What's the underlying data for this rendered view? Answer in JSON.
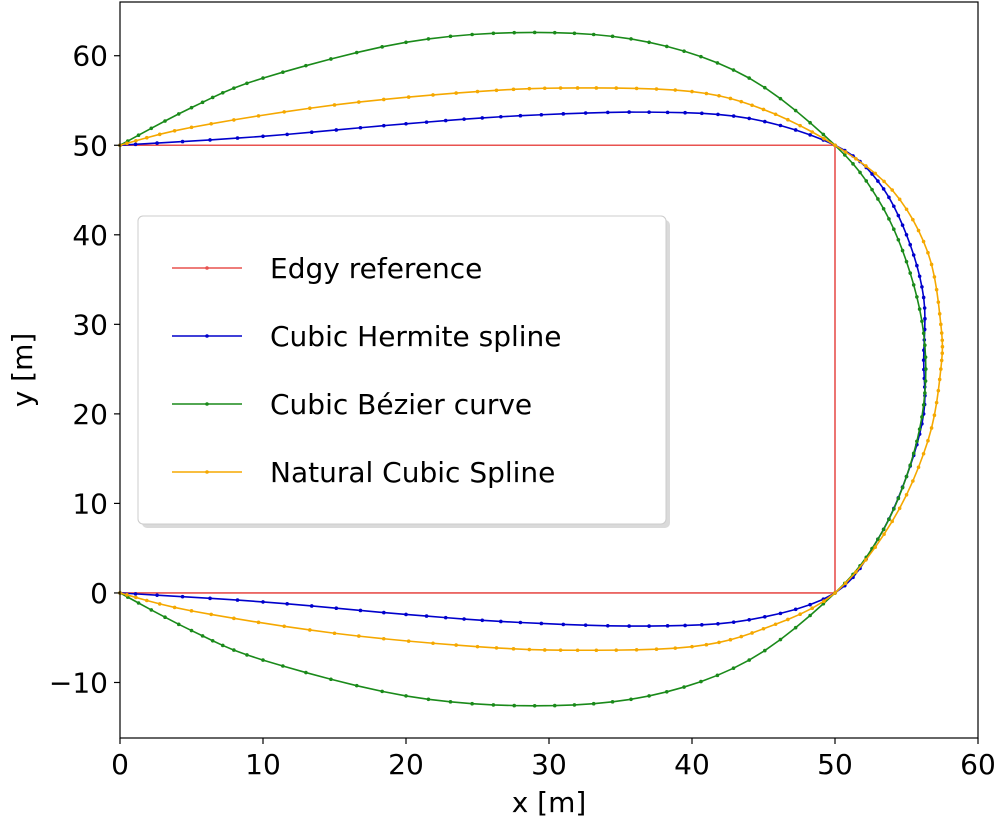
{
  "chart_data": {
    "type": "line",
    "xlabel": "x [m]",
    "ylabel": "y [m]",
    "xlim": [
      0,
      60
    ],
    "ylim": [
      -16.2,
      66
    ],
    "xticks": [
      0,
      10,
      20,
      30,
      40,
      50,
      60
    ],
    "yticks": [
      -10,
      0,
      10,
      20,
      30,
      40,
      50,
      60
    ],
    "xtick_labels": [
      "0",
      "10",
      "20",
      "30",
      "40",
      "50",
      "60"
    ],
    "ytick_labels": [
      "−10",
      "0",
      "10",
      "20",
      "30",
      "40",
      "50",
      "60"
    ],
    "grid": false,
    "legend_position": "center-left",
    "series": [
      {
        "name": "Edgy reference",
        "color": "#e8524f",
        "markers": false,
        "points": [
          [
            0,
            50
          ],
          [
            50,
            50
          ],
          [
            50,
            0
          ],
          [
            0,
            0
          ]
        ]
      },
      {
        "name": "Cubic Hermite spline",
        "color": "#0000cc",
        "markers": true,
        "points": [
          [
            0,
            50
          ],
          [
            10,
            51
          ],
          [
            20,
            52.4
          ],
          [
            28,
            53.3
          ],
          [
            37,
            53.7
          ],
          [
            44,
            53
          ],
          [
            50,
            50
          ],
          [
            53,
            46
          ],
          [
            55,
            40
          ],
          [
            56.2,
            33
          ],
          [
            56.2,
            26
          ],
          [
            56.2,
            20
          ],
          [
            55,
            13
          ],
          [
            53,
            6
          ],
          [
            50,
            0
          ],
          [
            44,
            -3
          ],
          [
            37,
            -3.7
          ],
          [
            28,
            -3.3
          ],
          [
            20,
            -2.4
          ],
          [
            10,
            -1
          ],
          [
            0,
            0
          ]
        ]
      },
      {
        "name": "Cubic Bézier curve",
        "color": "#1a8a1a",
        "markers": true,
        "points": [
          [
            0,
            50
          ],
          [
            5,
            54.2
          ],
          [
            10,
            57.5
          ],
          [
            20,
            61.5
          ],
          [
            29,
            62.6
          ],
          [
            37,
            61.5
          ],
          [
            44,
            57.5
          ],
          [
            50,
            50
          ],
          [
            53,
            44
          ],
          [
            55,
            37
          ],
          [
            56.2,
            29
          ],
          [
            56.2,
            21
          ],
          [
            55,
            13
          ],
          [
            53,
            6
          ],
          [
            50,
            0
          ],
          [
            44,
            -7.5
          ],
          [
            37,
            -11.5
          ],
          [
            29,
            -12.6
          ],
          [
            20,
            -11.5
          ],
          [
            10,
            -7.5
          ],
          [
            5,
            -4.2
          ],
          [
            0,
            0
          ]
        ]
      },
      {
        "name": "Natural Cubic Spline",
        "color": "#f5a800",
        "markers": true,
        "points": [
          [
            0,
            50
          ],
          [
            5,
            52
          ],
          [
            15,
            54.5
          ],
          [
            25,
            56
          ],
          [
            32,
            56.4
          ],
          [
            40,
            56
          ],
          [
            45,
            54
          ],
          [
            50,
            50
          ],
          [
            54,
            45
          ],
          [
            56.5,
            38
          ],
          [
            57.4,
            30
          ],
          [
            57.4,
            25
          ],
          [
            56.5,
            17
          ],
          [
            54,
            8
          ],
          [
            50,
            0
          ],
          [
            45,
            -4
          ],
          [
            40,
            -6
          ],
          [
            32,
            -6.4
          ],
          [
            25,
            -6
          ],
          [
            15,
            -4.5
          ],
          [
            5,
            -2
          ],
          [
            0,
            0
          ]
        ]
      }
    ]
  }
}
